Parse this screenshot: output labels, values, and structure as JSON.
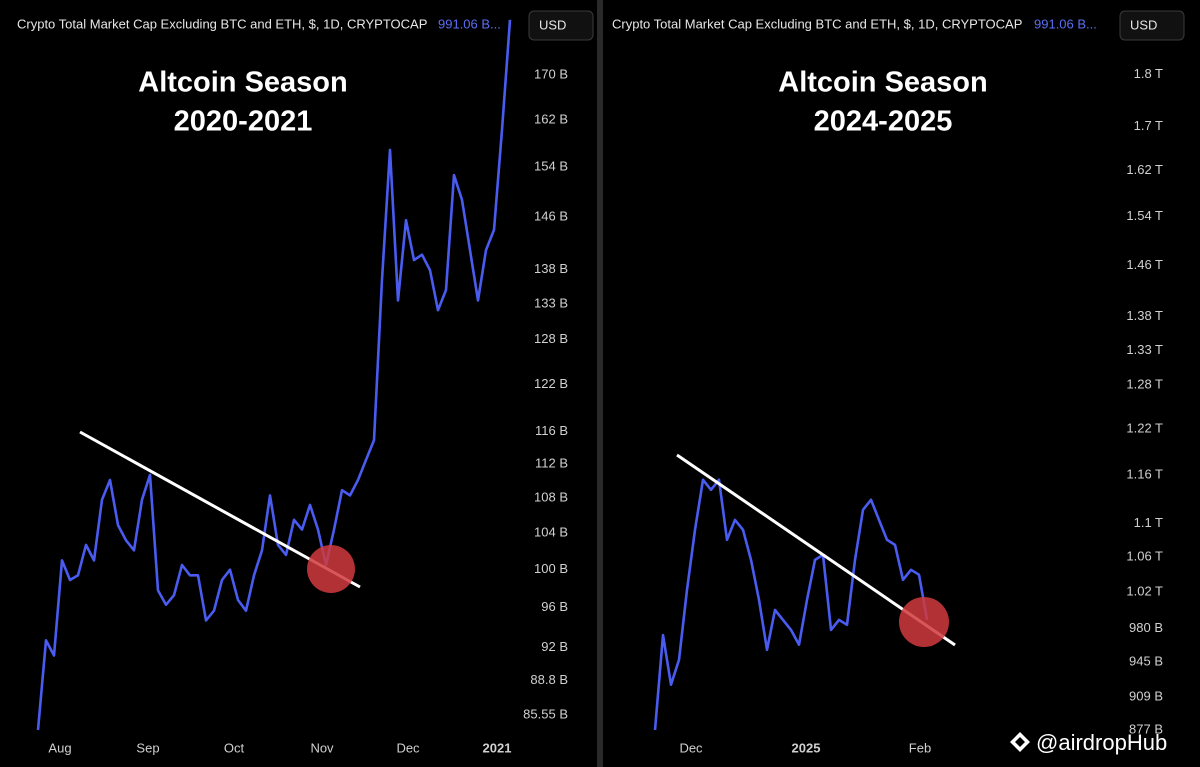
{
  "chart_data": [
    {
      "type": "line",
      "header": "Crypto Total Market Cap Excluding BTC and ETH, $, 1D, CRYPTOCAP",
      "header_value": "991.06 B...",
      "currency": "USD",
      "title": "Altcoin Season",
      "subtitle": "2020-2021",
      "color": "#4a5cf0",
      "log_scale": true,
      "values": [
        84.2,
        92.7,
        91.2,
        101.0,
        98.9,
        99.4,
        102.7,
        101.0,
        107.8,
        110.1,
        104.9,
        103.2,
        102.1,
        107.8,
        110.7,
        97.8,
        96.3,
        97.3,
        100.5,
        99.4,
        99.4,
        94.7,
        95.7,
        98.9,
        100.0,
        96.8,
        95.7,
        99.4,
        102.1,
        108.3,
        102.7,
        101.6,
        105.5,
        104.4,
        107.2,
        104.4,
        100.5,
        104.4,
        108.9,
        108.3,
        110.1,
        112.5,
        114.9,
        136.5,
        156.9,
        133.5,
        145.5,
        139.4,
        140.2,
        137.9,
        132.1,
        135.0,
        152.7,
        148.7,
        140.9,
        133.5,
        140.9,
        144.0,
        160.3,
        180.4
      ],
      "xlim": [
        0,
        59
      ],
      "xticks": [
        {
          "value": 2.75,
          "label": "Aug"
        },
        {
          "value": 13.75,
          "label": "Sep"
        },
        {
          "value": 24.5,
          "label": "Oct"
        },
        {
          "value": 35.5,
          "label": "Nov"
        },
        {
          "value": 46.25,
          "label": "Dec"
        },
        {
          "value": 57.375,
          "label": "2021"
        }
      ],
      "ylim": [
        83.3,
        182.3
      ],
      "yticks": [
        {
          "value": 170,
          "label": "170 B"
        },
        {
          "value": 162,
          "label": "162 B"
        },
        {
          "value": 154,
          "label": "154 B"
        },
        {
          "value": 146,
          "label": "146 B"
        },
        {
          "value": 138,
          "label": "138 B"
        },
        {
          "value": 133,
          "label": "133 B"
        },
        {
          "value": 128,
          "label": "128 B"
        },
        {
          "value": 122,
          "label": "122 B"
        },
        {
          "value": 116,
          "label": "116 B"
        },
        {
          "value": 112,
          "label": "112 B"
        },
        {
          "value": 108,
          "label": "108 B"
        },
        {
          "value": 104,
          "label": "104 B"
        },
        {
          "value": 100,
          "label": "100 B"
        },
        {
          "value": 96,
          "label": "96 B"
        },
        {
          "value": 92,
          "label": "92 B"
        },
        {
          "value": 88.8,
          "label": "88.8 B"
        },
        {
          "value": 85.55,
          "label": "85.55 B"
        }
      ]
    },
    {
      "type": "line",
      "header": "Crypto Total Market Cap Excluding BTC and ETH, $, 1D, CRYPTOCAP",
      "header_value": "991.06 B...",
      "currency": "USD",
      "title": "Altcoin Season",
      "subtitle": "2024-2025",
      "color": "#4a5cf0",
      "log_scale": true,
      "values": [
        877.0,
        973.2,
        921.6,
        947.2,
        1022.8,
        1092.3,
        1153.9,
        1141.3,
        1153.9,
        1080.4,
        1104.3,
        1092.3,
        1056.9,
        1011.5,
        957.6,
        1000.4,
        989.6,
        978.8,
        963.0,
        1011.5,
        1056.9,
        1062.8,
        978.8,
        989.6,
        984.2,
        1056.9,
        1116.6,
        1128.9,
        1104.3,
        1080.4,
        1074.4,
        1034.1,
        1045.5,
        1039.8,
        989.6
      ],
      "xlim": [
        0,
        34
      ],
      "xticks": [
        {
          "value": 4.5,
          "label": "Dec"
        },
        {
          "value": 18.875,
          "label": "2025"
        },
        {
          "value": 33.125,
          "label": "Feb"
        }
      ],
      "ylim": [
        867.4,
        1932
      ],
      "yticks": [
        {
          "value": 1800,
          "label": "1.8 T"
        },
        {
          "value": 1700,
          "label": "1.7 T"
        },
        {
          "value": 1620,
          "label": "1.62 T"
        },
        {
          "value": 1540,
          "label": "1.54 T"
        },
        {
          "value": 1460,
          "label": "1.46 T"
        },
        {
          "value": 1380,
          "label": "1.38 T"
        },
        {
          "value": 1330,
          "label": "1.33 T"
        },
        {
          "value": 1280,
          "label": "1.28 T"
        },
        {
          "value": 1220,
          "label": "1.22 T"
        },
        {
          "value": 1160,
          "label": "1.16 T"
        },
        {
          "value": 1100,
          "label": "1.1 T"
        },
        {
          "value": 1060,
          "label": "1.06 T"
        },
        {
          "value": 1020,
          "label": "1.02 T"
        },
        {
          "value": 980,
          "label": "980 B"
        },
        {
          "value": 945,
          "label": "945 B"
        },
        {
          "value": 909,
          "label": "909 B"
        },
        {
          "value": 877,
          "label": "877 B"
        }
      ]
    }
  ],
  "watermark": "@airdropHub"
}
